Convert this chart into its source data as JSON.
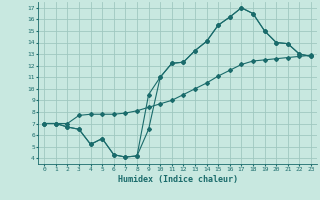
{
  "bg_color": "#c8e8e0",
  "grid_color": "#a0c8c0",
  "line_color": "#1a6b6b",
  "marker_color": "#1a6b6b",
  "xlabel": "Humidex (Indice chaleur)",
  "xlim": [
    -0.5,
    23.5
  ],
  "ylim": [
    3.5,
    17.5
  ],
  "xticks": [
    0,
    1,
    2,
    3,
    4,
    5,
    6,
    7,
    8,
    9,
    10,
    11,
    12,
    13,
    14,
    15,
    16,
    17,
    18,
    19,
    20,
    21,
    22,
    23
  ],
  "yticks": [
    4,
    5,
    6,
    7,
    8,
    9,
    10,
    11,
    12,
    13,
    14,
    15,
    16,
    17
  ],
  "line1_x": [
    0,
    1,
    2,
    3,
    4,
    5,
    6,
    7,
    8,
    9,
    10,
    11,
    12,
    13,
    14,
    15,
    16,
    17,
    18,
    19,
    20,
    21,
    22,
    23
  ],
  "line1_y": [
    7.0,
    7.0,
    6.7,
    6.5,
    5.2,
    5.7,
    4.3,
    4.1,
    4.2,
    6.5,
    11.0,
    12.2,
    12.3,
    13.3,
    14.1,
    15.5,
    16.2,
    17.0,
    16.5,
    15.0,
    14.0,
    13.9,
    13.0,
    12.8
  ],
  "line2_x": [
    0,
    1,
    2,
    3,
    4,
    5,
    6,
    7,
    8,
    9,
    10,
    11,
    12,
    13,
    14,
    15,
    16,
    17,
    18,
    19,
    20,
    21,
    22,
    23
  ],
  "line2_y": [
    7.0,
    7.0,
    7.0,
    7.7,
    7.8,
    7.8,
    7.8,
    7.9,
    8.1,
    8.4,
    8.7,
    9.0,
    9.5,
    10.0,
    10.5,
    11.1,
    11.6,
    12.1,
    12.4,
    12.5,
    12.6,
    12.7,
    12.8,
    12.9
  ],
  "line3_x": [
    0,
    1,
    2,
    3,
    4,
    5,
    6,
    7,
    8,
    9,
    10,
    11,
    12,
    13,
    14,
    15,
    16,
    17,
    18,
    19,
    20,
    21,
    22,
    23
  ],
  "line3_y": [
    7.0,
    7.0,
    6.7,
    6.5,
    5.2,
    5.7,
    4.3,
    4.1,
    4.2,
    9.5,
    11.0,
    12.2,
    12.3,
    13.3,
    14.1,
    15.5,
    16.2,
    17.0,
    16.5,
    15.0,
    14.0,
    13.9,
    13.0,
    12.8
  ]
}
